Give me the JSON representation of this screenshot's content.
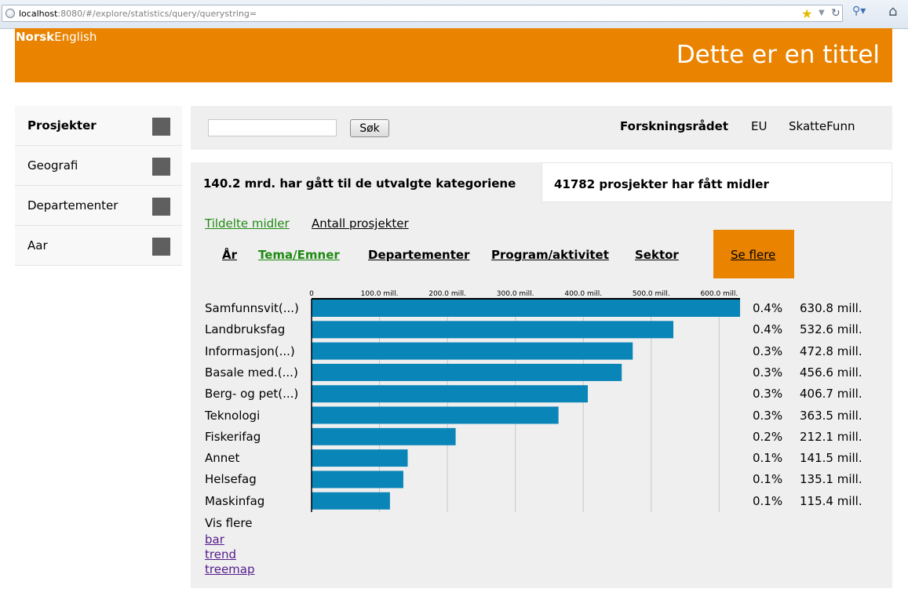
{
  "browser": {
    "url_host": "localhost",
    "url_rest": ":8080/#/explore/statistics/query/querystring="
  },
  "header": {
    "lang_active": "Norsk",
    "lang_other": "English",
    "title": "Dette er en tittel"
  },
  "sidebar": {
    "items": [
      {
        "label": "Prosjekter"
      },
      {
        "label": "Geografi"
      },
      {
        "label": "Departementer"
      },
      {
        "label": "Aar"
      }
    ]
  },
  "search": {
    "value": "",
    "button_label": "Søk",
    "sources": [
      "Forskningsrådet",
      "EU",
      "SkatteFunn"
    ]
  },
  "summary": {
    "left": "140.2 mrd. har gått til de utvalgte kategoriene",
    "right": "41782 prosjekter har fått midler"
  },
  "metric_tabs": [
    "Tildelte midler",
    "Antall prosjekter"
  ],
  "category_tabs": [
    "År",
    "Tema/Emner",
    "Departementer",
    "Program/aktivitet",
    "Sektor"
  ],
  "se_flere": "Se flere",
  "colors": {
    "accent": "#e98300",
    "bar": "#0a85b8",
    "active_tab": "#1f8a12",
    "panel": "#efefef"
  },
  "chart_data": {
    "type": "bar",
    "orientation": "horizontal",
    "axis_ticks": [
      "0",
      "100.0 mill.",
      "200.0 mill.",
      "300.0 mill.",
      "400.0 mill.",
      "500.0 mill.",
      "600.0 mill."
    ],
    "xlim": [
      0,
      630.8
    ],
    "grid": true,
    "categories": [
      "Samfunnsvit(...)",
      "Landbruksfag",
      "Informasjon(...)",
      "Basale med.(...)",
      "Berg- og pet(...)",
      "Teknologi",
      "Fiskerifag",
      "Annet",
      "Helsefag",
      "Maskinfag"
    ],
    "values": [
      630.8,
      532.6,
      472.8,
      456.6,
      406.7,
      363.5,
      212.1,
      141.5,
      135.1,
      115.4
    ],
    "percent_labels": [
      "0.4%",
      "0.4%",
      "0.3%",
      "0.3%",
      "0.3%",
      "0.3%",
      "0.2%",
      "0.1%",
      "0.1%",
      "0.1%"
    ],
    "value_labels": [
      "630.8 mill.",
      "532.6 mill.",
      "472.8 mill.",
      "456.6 mill.",
      "406.7 mill.",
      "363.5 mill.",
      "212.1 mill.",
      "141.5 mill.",
      "135.1 mill.",
      "115.4 mill."
    ]
  },
  "vis_flere": "Vis flere",
  "view_links": [
    "bar",
    "trend",
    "treemap"
  ]
}
